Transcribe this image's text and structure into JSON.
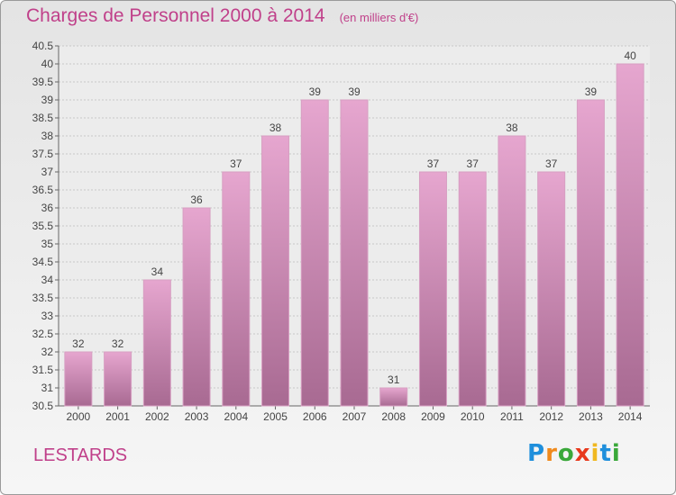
{
  "header": {
    "title": "Charges de Personnel 2000 à 2014",
    "unit": "(en milliers d'€)"
  },
  "footer": {
    "commune": "LESTARDS",
    "logo_text": "Proxiti"
  },
  "colors": {
    "title": "#c0408a",
    "bar_top": "#e6a6cf",
    "bar_bottom": "#a86a92",
    "logo_letters": [
      "#1f8fdc",
      "#f08a1c",
      "#3aa83a",
      "#e8381c",
      "#f0b820",
      "#1f8fdc",
      "#3aa83a"
    ]
  },
  "chart_data": {
    "type": "bar",
    "title": "Charges de Personnel 2000 à 2014",
    "subtitle": "(en milliers d'€)",
    "categories": [
      "2000",
      "2001",
      "2002",
      "2003",
      "2004",
      "2005",
      "2006",
      "2007",
      "2008",
      "2009",
      "2010",
      "2011",
      "2012",
      "2013",
      "2014"
    ],
    "values": [
      32,
      32,
      34,
      36,
      37,
      38,
      39,
      39,
      31,
      37,
      37,
      38,
      37,
      39,
      40
    ],
    "data_labels": [
      "32",
      "32",
      "34",
      "36",
      "37",
      "38",
      "39",
      "39",
      "31",
      "37",
      "37",
      "38",
      "37",
      "39",
      "40"
    ],
    "ylim": [
      30.5,
      40.5
    ],
    "yticks": [
      "30.5",
      "31",
      "31.5",
      "32",
      "32.5",
      "33",
      "33.5",
      "34",
      "34.5",
      "35",
      "35.5",
      "36",
      "36.5",
      "37",
      "37.5",
      "38",
      "38.5",
      "39",
      "39.5",
      "40",
      "40.5"
    ],
    "grid": true,
    "legend": "none"
  }
}
